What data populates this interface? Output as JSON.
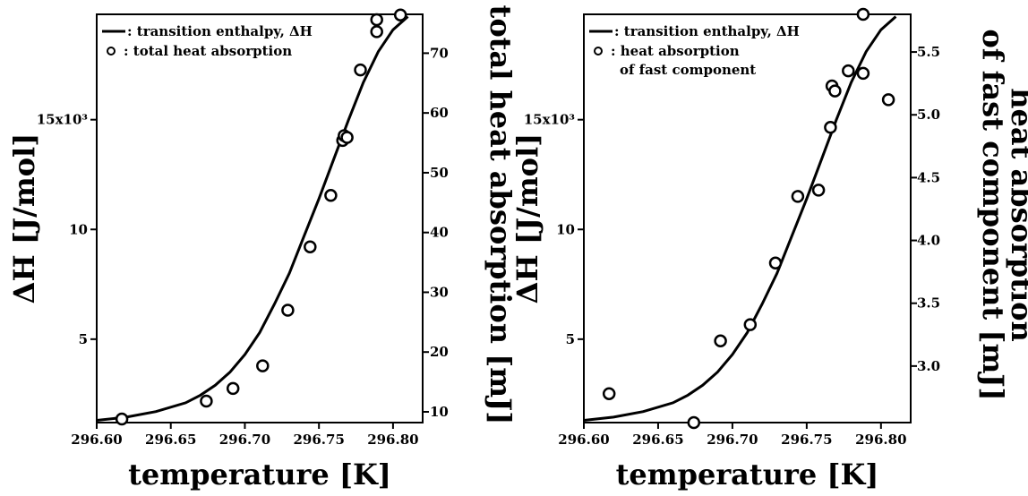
{
  "chart_data": [
    {
      "type": "line",
      "title": "",
      "xlabel": "temperature [K]",
      "ylabel": "ΔH [J/mol]",
      "y2label": "total heat absorption [mJ]",
      "xlim": [
        296.6,
        296.82
      ],
      "ylim": [
        1200,
        19800
      ],
      "y2lim": [
        8.2,
        76.5
      ],
      "x_ticks": [
        "296.60",
        "296.65",
        "296.70",
        "296.75",
        "296.80"
      ],
      "x_tick_values": [
        296.6,
        296.65,
        296.7,
        296.75,
        296.8
      ],
      "y_ticks": [
        "5",
        "10",
        "15x10³"
      ],
      "y_tick_values": [
        5000,
        10000,
        15000
      ],
      "y2_ticks": [
        "10",
        "20",
        "30",
        "40",
        "50",
        "60",
        "70"
      ],
      "y2_tick_values": [
        10,
        20,
        30,
        40,
        50,
        60,
        70
      ],
      "legend": {
        "position": "top-left",
        "line_label": ": transition enthalpy, ΔH",
        "marker_label_lines": [
          ": total heat absorption"
        ]
      },
      "series": [
        {
          "name": ": transition enthalpy, ΔH",
          "style": "line",
          "axis": "left",
          "x": [
            296.6,
            296.62,
            296.64,
            296.66,
            296.67,
            296.68,
            296.69,
            296.7,
            296.71,
            296.72,
            296.73,
            296.74,
            296.75,
            296.76,
            296.77,
            296.78,
            296.79,
            296.8,
            296.81
          ],
          "y": [
            1300,
            1450,
            1700,
            2100,
            2450,
            2900,
            3500,
            4300,
            5300,
            6600,
            8000,
            9700,
            11400,
            13200,
            15000,
            16700,
            18100,
            19100,
            19700
          ]
        },
        {
          "name": ": total heat absorption",
          "style": "markers",
          "axis": "right",
          "x": [
            296.617,
            296.674,
            296.692,
            296.712,
            296.729,
            296.744,
            296.758,
            296.766,
            296.767,
            296.769,
            296.778,
            296.789,
            296.789,
            296.805
          ],
          "y": [
            8.8,
            11.8,
            13.9,
            17.7,
            27.0,
            37.6,
            46.2,
            55.4,
            56.2,
            55.9,
            67.2,
            73.6,
            75.6,
            76.4
          ]
        }
      ]
    },
    {
      "type": "line",
      "title": "",
      "xlabel": "temperature [K]",
      "ylabel": "ΔH [J/mol]",
      "y2label_lines": [
        "heat absorption",
        "of fast component [mJ]"
      ],
      "xlim": [
        296.6,
        296.82
      ],
      "ylim": [
        1200,
        19800
      ],
      "y2lim": [
        2.55,
        5.8
      ],
      "x_ticks": [
        "296.60",
        "296.65",
        "296.70",
        "296.75",
        "296.80"
      ],
      "x_tick_values": [
        296.6,
        296.65,
        296.7,
        296.75,
        296.8
      ],
      "y_ticks": [
        "5",
        "10",
        "15x10³"
      ],
      "y_tick_values": [
        5000,
        10000,
        15000
      ],
      "y2_ticks": [
        "3.0",
        "3.5",
        "4.0",
        "4.5",
        "5.0",
        "5.5"
      ],
      "y2_tick_values": [
        3.0,
        3.5,
        4.0,
        4.5,
        5.0,
        5.5
      ],
      "legend": {
        "position": "top-left",
        "line_label": ": transition enthalpy, ΔH",
        "marker_label_lines": [
          ": heat absorption",
          "of fast component"
        ]
      },
      "series": [
        {
          "name": ": transition enthalpy, ΔH",
          "style": "line",
          "axis": "left",
          "x": [
            296.6,
            296.62,
            296.64,
            296.66,
            296.67,
            296.68,
            296.69,
            296.7,
            296.71,
            296.72,
            296.73,
            296.74,
            296.75,
            296.76,
            296.77,
            296.78,
            296.79,
            296.8,
            296.81
          ],
          "y": [
            1300,
            1450,
            1700,
            2100,
            2450,
            2900,
            3500,
            4300,
            5300,
            6600,
            8000,
            9700,
            11400,
            13200,
            15000,
            16700,
            18100,
            19100,
            19700
          ]
        },
        {
          "name": ": heat absorption of fast component",
          "style": "markers",
          "axis": "right",
          "x": [
            296.617,
            296.674,
            296.692,
            296.712,
            296.729,
            296.744,
            296.758,
            296.766,
            296.767,
            296.769,
            296.778,
            296.788,
            296.788,
            296.805
          ],
          "y": [
            2.78,
            2.55,
            3.2,
            3.33,
            3.82,
            4.35,
            4.4,
            4.9,
            5.23,
            5.19,
            5.35,
            5.33,
            5.8,
            5.12
          ]
        }
      ]
    }
  ]
}
